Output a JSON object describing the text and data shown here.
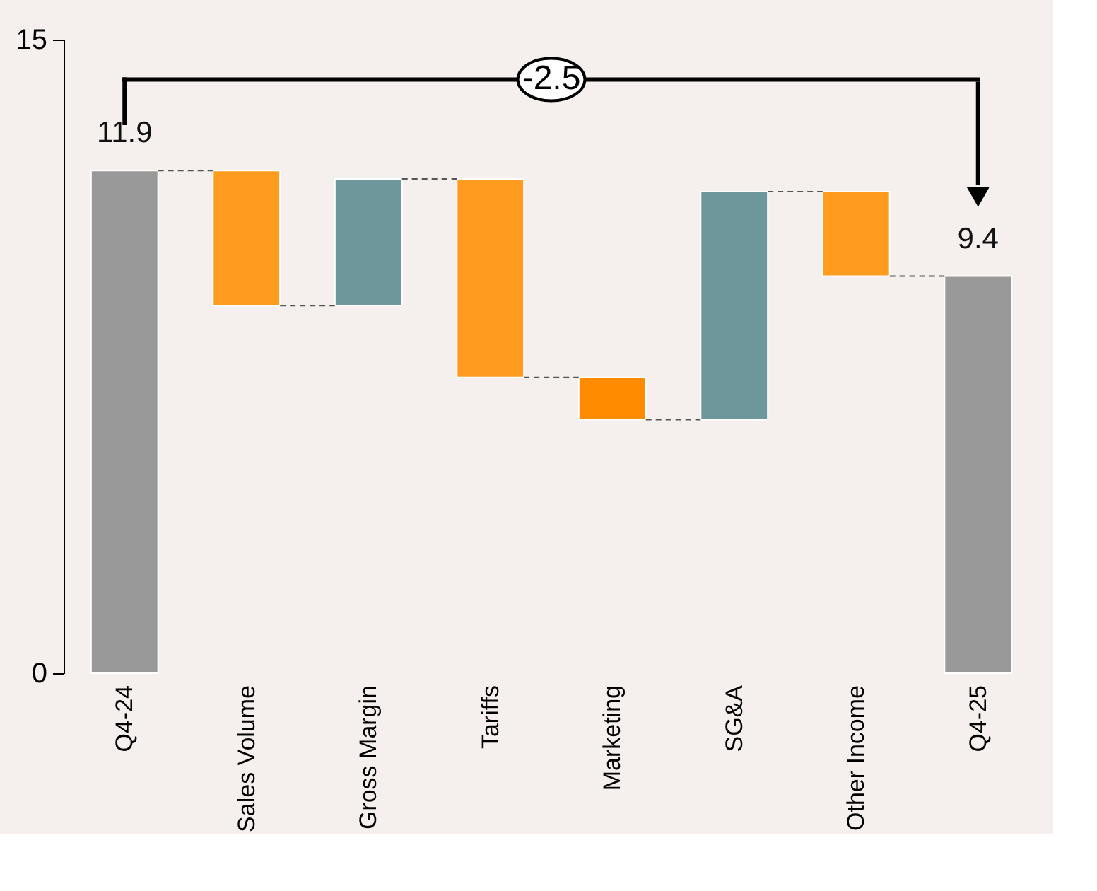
{
  "chart_data": {
    "type": "bar",
    "categories": [
      "Q4-24",
      "Sales Volume",
      "Gross Margin",
      "Tariffs",
      "Marketing",
      "SG&A",
      "Other Income",
      "Q4-25"
    ],
    "base": [
      0,
      11.9,
      8.7,
      11.7,
      7.0,
      6.0,
      11.4,
      0
    ],
    "values": [
      11.9,
      -3.2,
      3.0,
      -4.7,
      -1.0,
      5.4,
      -2.0,
      9.4
    ],
    "colors": [
      "#999999",
      "#ff9b1f",
      "#6e979c",
      "#ff9b1f",
      "#ff8c00",
      "#6e979c",
      "#ff9b1f",
      "#999999"
    ],
    "value_labels": [
      "11.9",
      null,
      null,
      null,
      null,
      null,
      null,
      "9.4"
    ],
    "annotations": [
      "-2.5"
    ],
    "ylim": [
      0,
      15
    ],
    "yticks": [
      0,
      15
    ],
    "grid": false
  }
}
